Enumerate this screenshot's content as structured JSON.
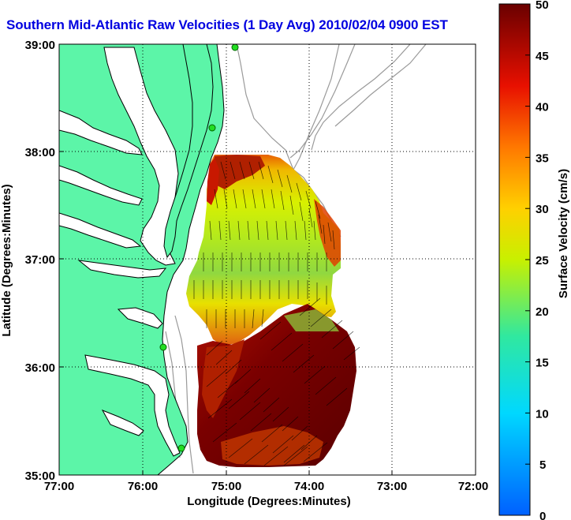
{
  "title": "Southern Mid-Atlantic Raw Velocities (1 Day Avg) 2010/02/04 0900 EST",
  "map": {
    "xlabel": "Longitude (Degrees:Minutes)",
    "ylabel": "Latitude (Degrees:Minutes)",
    "lon_ticks": [
      "77:00",
      "76:00",
      "75:00",
      "74:00",
      "73:00",
      "72:00"
    ],
    "lat_ticks": [
      "39:00",
      "38:00",
      "37:00",
      "36:00",
      "35:00"
    ],
    "lon_range": [
      -77,
      -72
    ],
    "lat_range": [
      35,
      39
    ],
    "land_color": "#5cf5a8",
    "grid": true
  },
  "colorbar": {
    "label": "Surface Velocity (cm/s)",
    "ticks": [
      "0",
      "5",
      "10",
      "15",
      "20",
      "25",
      "30",
      "35",
      "40",
      "45",
      "50"
    ],
    "range": [
      0,
      50
    ],
    "colormap": "jet-like: blue-cyan-green-yellow-orange-red-darkred"
  },
  "chart_data": {
    "type": "heatmap",
    "title": "Southern Mid-Atlantic Raw Velocities (1 Day Avg) 2010/02/04 0900 EST",
    "xlabel": "Longitude (Degrees:Minutes)",
    "ylabel": "Latitude (Degrees:Minutes)",
    "xlim": [
      -77,
      -72
    ],
    "ylim": [
      35,
      39
    ],
    "zlabel": "Surface Velocity (cm/s)",
    "zlim": [
      0,
      50
    ]
  }
}
